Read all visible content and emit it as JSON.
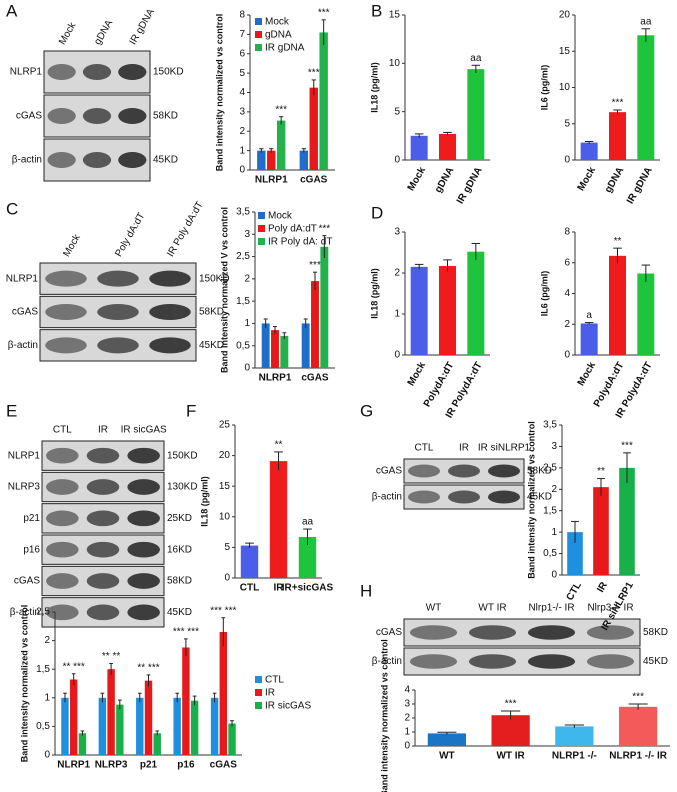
{
  "panel_labels": [
    "A",
    "B",
    "C",
    "D",
    "E",
    "F",
    "G",
    "H"
  ],
  "blots": [
    {
      "lanes": [
        "Mock",
        "gDNA",
        "IR gDNA"
      ],
      "rows": [
        {
          "label": "NLRP1",
          "size": "150KD"
        },
        {
          "label": "cGAS",
          "size": "58KD"
        },
        {
          "label": "β-actin",
          "size": "45KD"
        }
      ]
    },
    {
      "lanes": [
        "Mock",
        "Poly dA:dT",
        "IR Poly dA:dT"
      ],
      "rows": [
        {
          "label": "NLRP1",
          "size": "150KD"
        },
        {
          "label": "cGAS",
          "size": "58KD"
        },
        {
          "label": "β-actin",
          "size": "45KD"
        }
      ]
    },
    {
      "lanes": [
        "CTL",
        "IR",
        "IR sicGAS"
      ],
      "rows": [
        {
          "label": "NLRP1",
          "size": "150KD"
        },
        {
          "label": "NLRP3",
          "size": "130KD"
        },
        {
          "label": "p21",
          "size": "25KD"
        },
        {
          "label": "p16",
          "size": "16KD"
        },
        {
          "label": "cGAS",
          "size": "58KD"
        },
        {
          "label": "β-actin",
          "size": "45KD"
        }
      ]
    },
    {
      "lanes": [
        "CTL",
        "IR",
        "IR siNLRP1"
      ],
      "rows": [
        {
          "label": "cGAS",
          "size": "58KD"
        },
        {
          "label": "β-actin",
          "size": "45KD"
        }
      ]
    },
    {
      "lanes": [
        "WT",
        "WT IR",
        "Nlrp1-/- IR",
        "Nlrp3-/- IR"
      ],
      "rows": [
        {
          "label": "cGAS",
          "size": "58KD"
        },
        {
          "label": "β-actin",
          "size": "45KD"
        }
      ]
    }
  ],
  "chart_data": [
    {
      "type": "bar",
      "y_label": "Band intensity normalized vs control",
      "categories": [
        "NLRP1",
        "cGAS"
      ],
      "ylim": [
        0,
        8
      ],
      "yticks": [
        0,
        1,
        2,
        3,
        4,
        5,
        6,
        7,
        8
      ],
      "series": [
        {
          "name": "Mock",
          "color": "#1f6fc9",
          "values": [
            1,
            1
          ],
          "errors": [
            0.1,
            0.1
          ],
          "annotations": [
            null,
            null
          ]
        },
        {
          "name": "gDNA",
          "color": "#e8191b",
          "values": [
            1,
            4.25
          ],
          "errors": [
            0.1,
            0.4
          ],
          "annotations": [
            null,
            "***"
          ]
        },
        {
          "name": "IR gDNA",
          "color": "#22b14c",
          "values": [
            2.55,
            7.1
          ],
          "errors": [
            0.2,
            0.65
          ],
          "annotations": [
            "***",
            "***"
          ]
        }
      ]
    },
    {
      "type": "bar",
      "y_label": "IL18 (pg/ml)",
      "categories": [
        "Mock",
        "gDNA",
        "IR gDNA"
      ],
      "rotate_labels": true,
      "values": [
        2.5,
        2.7,
        9.4
      ],
      "errors": [
        0.2,
        0.15,
        0.4
      ],
      "colors": [
        "#4a5ee8",
        "#ee1c1c",
        "#1ec43c"
      ],
      "annotations": [
        null,
        null,
        "aa"
      ],
      "ylim": [
        0,
        15
      ],
      "yticks": [
        0,
        5,
        10,
        15
      ]
    },
    {
      "type": "bar",
      "y_label": "IL6 (pg/ml)",
      "categories": [
        "Mock",
        "gDNA",
        "IR gDNA"
      ],
      "rotate_labels": true,
      "values": [
        2.4,
        6.6,
        17.2
      ],
      "errors": [
        0.15,
        0.3,
        0.9
      ],
      "colors": [
        "#4a5ee8",
        "#ee1c1c",
        "#1ec43c"
      ],
      "annotations": [
        null,
        "***",
        "aa"
      ],
      "ylim": [
        0,
        20
      ],
      "yticks": [
        0,
        5,
        10,
        15,
        20
      ]
    },
    {
      "type": "bar",
      "y_label": "Band intensity normalized V vs control",
      "categories": [
        "NLRP1",
        "cGAS"
      ],
      "ylim": [
        0,
        3.5
      ],
      "yticks": [
        0,
        {
          "value": 0.5,
          "label": "0,5"
        },
        1,
        {
          "value": 1.5,
          "label": "1,5"
        },
        2,
        {
          "value": 2.5,
          "label": "2,5"
        },
        3,
        {
          "value": 3.5,
          "label": "3,5"
        }
      ],
      "series": [
        {
          "name": "Mock",
          "color": "#1f6fc9",
          "values": [
            1,
            1
          ],
          "errors": [
            0.1,
            0.1
          ],
          "annotations": [
            null,
            null
          ]
        },
        {
          "name": "Poly dA:dT",
          "color": "#e8191b",
          "values": [
            0.85,
            1.95
          ],
          "errors": [
            0.08,
            0.2
          ],
          "annotations": [
            null,
            "***"
          ]
        },
        {
          "name": "IR Poly dA: dT",
          "color": "#22b14c",
          "values": [
            0.72,
            2.72
          ],
          "errors": [
            0.07,
            0.25
          ],
          "annotations": [
            null,
            "***"
          ]
        }
      ]
    },
    {
      "type": "bar",
      "y_label": "IL18 (pg/ml)",
      "categories": [
        "Mock",
        "PolydA:dT",
        "IR PolydA:dT"
      ],
      "rotate_labels": true,
      "values": [
        2.15,
        2.17,
        2.52
      ],
      "errors": [
        0.06,
        0.15,
        0.2
      ],
      "colors": [
        "#4a5ee8",
        "#ee1c1c",
        "#1ec43c"
      ],
      "annotations": [
        null,
        null,
        null
      ],
      "ylim": [
        0,
        3
      ],
      "yticks": [
        0,
        1,
        2,
        3
      ]
    },
    {
      "type": "bar",
      "y_label": "IL6 (pg/ml)",
      "categories": [
        "Mock",
        "PolydA:dT",
        "IR PolydA:dT"
      ],
      "rotate_labels": true,
      "values": [
        2.05,
        6.45,
        5.3
      ],
      "errors": [
        0.06,
        0.5,
        0.55
      ],
      "colors": [
        "#4a5ee8",
        "#ee1c1c",
        "#1ec43c"
      ],
      "annotations": [
        "a",
        "**",
        null
      ],
      "ylim": [
        0,
        8
      ],
      "yticks": [
        0,
        2,
        4,
        6,
        8
      ]
    },
    {
      "type": "bar",
      "y_label": "Band intensity normalized vs control",
      "categories": [
        "NLRP1",
        "NLRP3",
        "p21",
        "p16",
        "cGAS"
      ],
      "ylim": [
        0,
        2.5
      ],
      "yticks": [
        0,
        {
          "value": 0.5,
          "label": "0,5"
        },
        1,
        {
          "value": 1.5,
          "label": "1,5"
        },
        2,
        {
          "value": 2.5,
          "label": "2,5"
        }
      ],
      "series": [
        {
          "name": "CTL",
          "color": "#1f8fe0",
          "values": [
            1,
            1,
            1,
            1,
            1
          ],
          "errors": [
            0.08,
            0.08,
            0.08,
            0.08,
            0.08
          ],
          "annotations": [
            null,
            null,
            null,
            null,
            null
          ]
        },
        {
          "name": "IR",
          "color": "#e8191b",
          "values": [
            1.32,
            1.5,
            1.3,
            1.88,
            2.15
          ],
          "errors": [
            0.1,
            0.1,
            0.1,
            0.15,
            0.25
          ],
          "annotations": [
            "** ***",
            "** **",
            "** ***",
            "*** ***",
            "*** ***"
          ]
        },
        {
          "name": "IR sicGAS",
          "color": "#19b04b",
          "values": [
            0.38,
            0.88,
            0.38,
            0.95,
            0.55
          ],
          "errors": [
            0.04,
            0.08,
            0.04,
            0.08,
            0.05
          ],
          "annotations": [
            null,
            null,
            null,
            null,
            null
          ]
        }
      ]
    },
    {
      "type": "bar",
      "y_label": "IL18 (pg/ml)",
      "categories": [
        "CTL",
        "IR",
        "IR+sicGAS"
      ],
      "values": [
        5.3,
        19.1,
        6.7
      ],
      "errors": [
        0.4,
        1.5,
        1.3
      ],
      "colors": [
        "#4a5ee8",
        "#ee1c1c",
        "#1ec43c"
      ],
      "annotations": [
        null,
        "**",
        "aa"
      ],
      "ylim": [
        0,
        25
      ],
      "yticks": [
        0,
        5,
        10,
        15,
        20,
        25
      ]
    },
    {
      "type": "bar",
      "y_label": "Band intensity normalized vs control",
      "categories": [
        "CTL",
        "IR",
        "IR siNLRP1"
      ],
      "rotate_labels": true,
      "values": [
        1,
        2.05,
        2.5
      ],
      "errors": [
        0.25,
        0.2,
        0.35
      ],
      "colors": [
        "#1f8fe0",
        "#e8191b",
        "#19b04b"
      ],
      "annotations": [
        null,
        "**",
        "***"
      ],
      "ylim": [
        0,
        3.5
      ],
      "yticks": [
        0,
        {
          "value": 0.5,
          "label": "0,5"
        },
        1,
        {
          "value": 1.5,
          "label": "1,5"
        },
        2,
        {
          "value": 2.5,
          "label": "2,5"
        },
        3,
        {
          "value": 3.5,
          "label": "3,5"
        }
      ]
    },
    {
      "type": "bar",
      "y_label": "Band intensity normalized vs control",
      "categories": [
        "WT",
        "WT IR",
        "NLRP1 -/-",
        "NLRP1 -/- IR"
      ],
      "values": [
        0.9,
        2.2,
        1.4,
        2.8
      ],
      "errors": [
        0.08,
        0.3,
        0.1,
        0.2
      ],
      "colors": [
        "#1b75c7",
        "#e41e1e",
        "#3db7ec",
        "#f35b5b"
      ],
      "annotations": [
        null,
        "***",
        null,
        "***"
      ],
      "ylim": [
        0,
        4
      ],
      "yticks": [
        0,
        1,
        2,
        3,
        4
      ]
    }
  ]
}
